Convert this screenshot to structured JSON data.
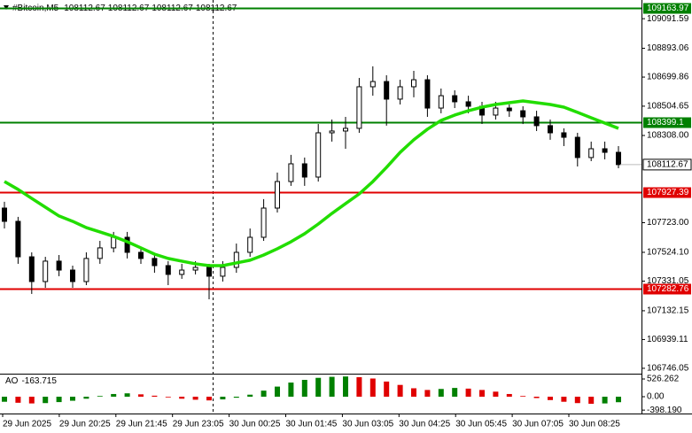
{
  "chart_data": {
    "type": "candlestick",
    "symbol": "#Bitcoin,M5",
    "header_ohlc": [
      108112.67,
      108112.67,
      108112.67,
      108112.67
    ],
    "ylim": [
      106710,
      109217
    ],
    "yticks": [
      109091.59,
      108893.06,
      108699.86,
      108504.65,
      {
        "value": 108308,
        "label": "108308.00"
      },
      {
        "value": 107723,
        "label": "107723.00"
      },
      {
        "value": 107524.1,
        "label": "107524.10"
      },
      107331.05,
      107132.15,
      106939.11,
      106746.05
    ],
    "levels": [
      {
        "value": 109163.97,
        "color": "#008000"
      },
      {
        "value": 108399.1,
        "color": "#008000"
      },
      {
        "value": 107927.39,
        "color": "#e00000"
      },
      {
        "value": 107282.76,
        "color": "#e00000"
      }
    ],
    "candles": [
      [
        107821,
        107863,
        107684,
        107732
      ],
      [
        107732,
        107762,
        107447,
        107494
      ],
      [
        107494,
        107524,
        107245,
        107328
      ],
      [
        107328,
        107494,
        107286,
        107465
      ],
      [
        107465,
        107506,
        107364,
        107405
      ],
      [
        107405,
        107435,
        107286,
        107328
      ],
      [
        107328,
        107524,
        107304,
        107483
      ],
      [
        107483,
        107601,
        107447,
        107554
      ],
      [
        107554,
        107661,
        107524,
        107625
      ],
      [
        107625,
        107661,
        107483,
        107524
      ],
      [
        107524,
        107554,
        107447,
        107483
      ],
      [
        107483,
        107506,
        107387,
        107435
      ],
      [
        107435,
        107465,
        107304,
        107376
      ],
      [
        107376,
        107447,
        107346,
        107405
      ],
      [
        107405,
        107465,
        107376,
        107423
      ],
      [
        107423,
        107447,
        107209,
        107364
      ],
      [
        107364,
        107465,
        107328,
        107423
      ],
      [
        107423,
        107583,
        107387,
        107524
      ],
      [
        107524,
        107684,
        107494,
        107625
      ],
      [
        107625,
        107881,
        107601,
        107821
      ],
      [
        107821,
        108059,
        107791,
        107999
      ],
      [
        107999,
        108178,
        107970,
        108118
      ],
      [
        108118,
        108160,
        107970,
        108029
      ],
      [
        108029,
        108385,
        107999,
        108326
      ],
      [
        108326,
        108415,
        108267,
        108338
      ],
      [
        108338,
        108433,
        108219,
        108356
      ],
      [
        108356,
        108694,
        108326,
        108635
      ],
      [
        108635,
        108772,
        108575,
        108670
      ],
      [
        108670,
        108712,
        108374,
        108552
      ],
      [
        108552,
        108682,
        108516,
        108635
      ],
      [
        108635,
        108742,
        108564,
        108682
      ],
      [
        108682,
        108712,
        108433,
        108492
      ],
      [
        108492,
        108623,
        108457,
        108575
      ],
      [
        108575,
        108611,
        108492,
        108534
      ],
      [
        108534,
        108575,
        108457,
        108504
      ],
      [
        108504,
        108534,
        108385,
        108445
      ],
      [
        108445,
        108534,
        108415,
        108492
      ],
      [
        108492,
        108516,
        108433,
        108474
      ],
      [
        108474,
        108504,
        108385,
        108433
      ],
      [
        108433,
        108474,
        108338,
        108374
      ],
      [
        108374,
        108415,
        108279,
        108326
      ],
      [
        108326,
        108356,
        108237,
        108296
      ],
      [
        108296,
        108326,
        108100,
        108160
      ],
      [
        108160,
        108267,
        108136,
        108219
      ],
      [
        108219,
        108267,
        108148,
        108195
      ],
      [
        108195,
        108237,
        108088,
        108112.67
      ]
    ],
    "ma": {
      "color": "#22dd00",
      "values": [
        107999,
        107946,
        107886,
        107827,
        107768,
        107732,
        107690,
        107661,
        107631,
        107595,
        107554,
        107512,
        107483,
        107465,
        107447,
        107435,
        107435,
        107453,
        107471,
        107506,
        107548,
        107595,
        107649,
        107714,
        107785,
        107851,
        107916,
        107999,
        108094,
        108195,
        108279,
        108350,
        108409,
        108445,
        108474,
        108498,
        108516,
        108528,
        108540,
        108528,
        108516,
        108498,
        108463,
        108427,
        108391,
        108356
      ]
    },
    "ao": {
      "name": "AO",
      "up_color": "#008000",
      "down_color": "#e00000",
      "ylim": [
        -447,
        605
      ],
      "yticks": [
        526.262,
        {
          "value": 0,
          "label": "0.00"
        },
        {
          "value": -398.19,
          "label": "-398.190"
        }
      ],
      "values": [
        -150,
        -180,
        -200,
        -190,
        -160,
        -120,
        -60,
        20,
        80,
        100,
        70,
        30,
        -20,
        -60,
        -90,
        -110,
        -80,
        -30,
        60,
        180,
        300,
        420,
        500,
        560,
        590,
        600,
        580,
        540,
        450,
        350,
        250,
        200,
        230,
        260,
        240,
        200,
        150,
        80,
        20,
        -40,
        -100,
        -150,
        -190,
        -210,
        -200,
        -163.715
      ]
    },
    "time_labels": [
      "29 Jun 2025",
      "29 Jun 20:25",
      "29 Jun 21:45",
      "29 Jun 23:05",
      "30 Jun 00:25",
      "30 Jun 01:45",
      "30 Jun 03:05",
      "30 Jun 04:25",
      "30 Jun 05:45",
      "30 Jun 07:05",
      "30 Jun 08:25"
    ]
  }
}
